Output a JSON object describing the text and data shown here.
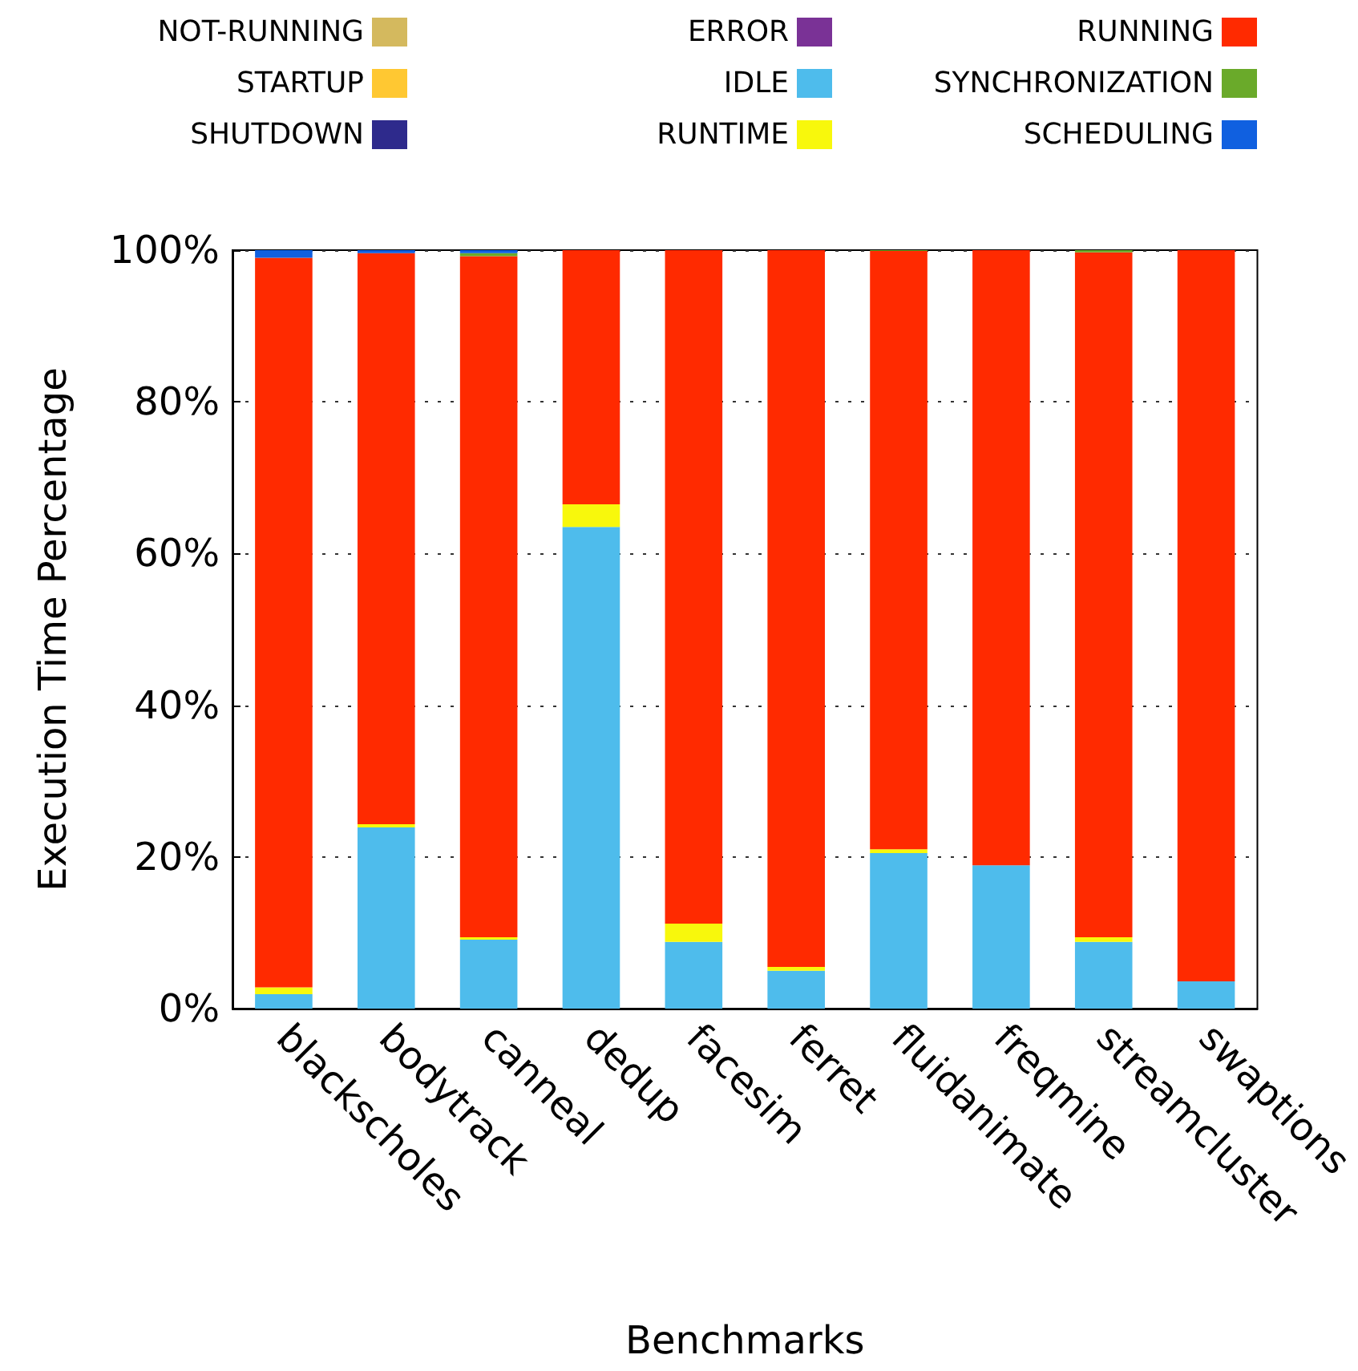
{
  "chart_data": {
    "type": "bar",
    "stacked": true,
    "xlabel": "Benchmarks",
    "ylabel": "Execution Time Percentage",
    "categories": [
      "blackscholes",
      "bodytrack",
      "canneal",
      "dedup",
      "facesim",
      "ferret",
      "fluidanimate",
      "freqmine",
      "streamcluster",
      "swaptions"
    ],
    "series": [
      {
        "name": "NOT-RUNNING",
        "color": "#d4b95e",
        "values": [
          0,
          0,
          0,
          0,
          0,
          0,
          0,
          0,
          0,
          0
        ]
      },
      {
        "name": "STARTUP",
        "color": "#ffc832",
        "values": [
          0,
          0,
          0,
          0,
          0,
          0,
          0,
          0,
          0,
          0
        ]
      },
      {
        "name": "SHUTDOWN",
        "color": "#2e2a8c",
        "values": [
          0,
          0,
          0,
          0,
          0,
          0,
          0,
          0,
          0,
          0
        ]
      },
      {
        "name": "ERROR",
        "color": "#7a3296",
        "values": [
          0,
          0,
          0,
          0,
          0,
          0,
          0,
          0,
          0,
          0
        ]
      },
      {
        "name": "IDLE",
        "color": "#4ebcec",
        "values": [
          1.9,
          23.9,
          9.1,
          63.5,
          8.8,
          5.0,
          20.5,
          18.9,
          8.8,
          3.6
        ]
      },
      {
        "name": "RUNTIME",
        "color": "#f8f80c",
        "values": [
          0.9,
          0.4,
          0.3,
          3.0,
          2.4,
          0.5,
          0.5,
          0,
          0.6,
          0
        ]
      },
      {
        "name": "RUNNING",
        "color": "#ff2a00",
        "values": [
          96.2,
          75.3,
          89.8,
          33.5,
          88.8,
          94.5,
          78.9,
          81.1,
          90.3,
          96.4
        ]
      },
      {
        "name": "SYNCHRONIZATION",
        "color": "#6aaa2a",
        "values": [
          0,
          0,
          0.4,
          0,
          0,
          0,
          0.1,
          0,
          0.3,
          0
        ]
      },
      {
        "name": "SCHEDULING",
        "color": "#1060e0",
        "values": [
          1.0,
          0.4,
          0.4,
          0,
          0,
          0,
          0,
          0,
          0,
          0
        ]
      }
    ],
    "ylim": [
      0,
      100
    ],
    "yticks": [
      {
        "value": 0,
        "label": "0%"
      },
      {
        "value": 20,
        "label": "20%"
      },
      {
        "value": 40,
        "label": "40%"
      },
      {
        "value": 60,
        "label": "60%"
      },
      {
        "value": 80,
        "label": "80%"
      },
      {
        "value": 100,
        "label": "100%"
      }
    ],
    "grid": "y",
    "legend": "top"
  }
}
